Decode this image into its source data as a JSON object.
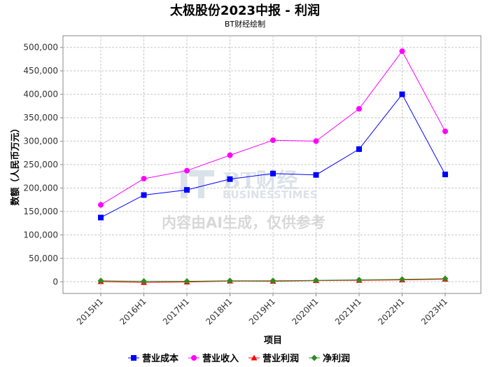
{
  "chart_data": {
    "type": "line",
    "title": "太极股份2023中报 - 利润",
    "subtitle": "BT财经绘制",
    "xlabel": "项目",
    "ylabel": "数额（人民币万元）",
    "categories": [
      "2015H1",
      "2016H1",
      "2017H1",
      "2018H1",
      "2019H1",
      "2020H1",
      "2021H1",
      "2022H1",
      "2023H1"
    ],
    "ylim": [
      -25000,
      525000
    ],
    "yticks": [
      0,
      50000,
      100000,
      150000,
      200000,
      250000,
      300000,
      350000,
      400000,
      450000,
      500000
    ],
    "ytick_labels": [
      "0",
      "50,000",
      "100,000",
      "150,000",
      "200,000",
      "250,000",
      "300,000",
      "350,000",
      "400,000",
      "450,000",
      "500,000"
    ],
    "grid": true,
    "legend_position": "bottom",
    "series": [
      {
        "name": "营业成本",
        "color": "#0000ff",
        "marker": "square",
        "values": [
          137000,
          185000,
          196000,
          219000,
          231000,
          228000,
          283000,
          400000,
          229000
        ]
      },
      {
        "name": "营业收入",
        "color": "#ff00ff",
        "marker": "circle",
        "values": [
          164000,
          220000,
          237000,
          270000,
          302000,
          300000,
          369000,
          492000,
          321000
        ]
      },
      {
        "name": "营业利润",
        "color": "#ff0000",
        "marker": "triangle",
        "values": [
          500,
          -1500,
          -500,
          1500,
          1000,
          2500,
          3000,
          4000,
          5500
        ]
      },
      {
        "name": "净利润",
        "color": "#2e8b22",
        "marker": "diamond",
        "values": [
          2000,
          1000,
          1000,
          2000,
          2000,
          3000,
          4000,
          5000,
          6500
        ]
      }
    ]
  },
  "watermark": {
    "brand": "BT财经",
    "brand_en": "BUSINESSTIMES",
    "notice": "内容由AI生成，仅供参考"
  }
}
